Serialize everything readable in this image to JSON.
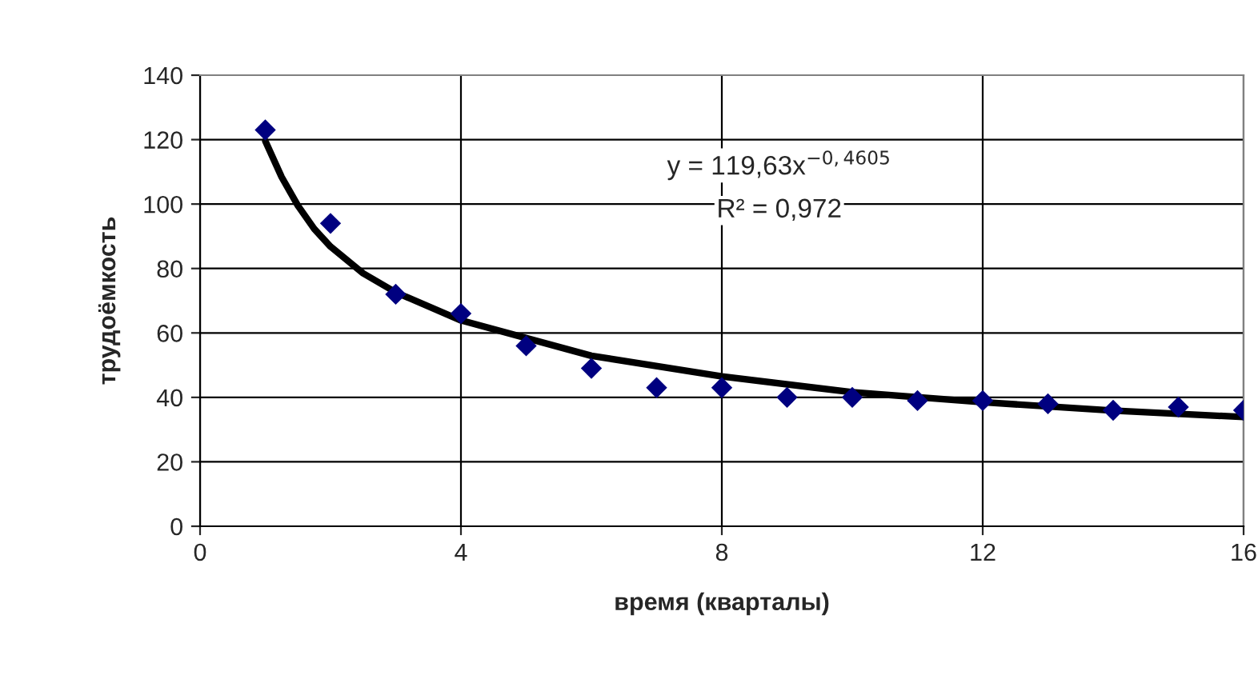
{
  "chart_data": {
    "type": "scatter",
    "xlabel": "время (кварталы)",
    "ylabel": "трудоёмкость",
    "x": [
      1,
      2,
      3,
      4,
      5,
      6,
      7,
      8,
      9,
      10,
      11,
      12,
      13,
      14,
      15,
      16
    ],
    "series": [
      {
        "color": "#000080",
        "marker": "diamond",
        "values": [
          123,
          94,
          72,
          66,
          56,
          49,
          43,
          43,
          40,
          40,
          39,
          39,
          38,
          36,
          37,
          36
        ]
      },
      {
        "type": "line",
        "color": "#000000",
        "marker": "none",
        "line_style": "solid",
        "x": [
          1,
          1.25,
          1.5,
          1.75,
          2,
          2.5,
          3,
          4,
          6,
          8,
          10,
          12,
          14,
          16
        ],
        "values": [
          119.6,
          108.4,
          99.5,
          92.3,
          86.8,
          78.5,
          72.6,
          63.9,
          52.9,
          46.5,
          41.6,
          38.5,
          35.9,
          33.9
        ]
      }
    ],
    "annotations": [
      "y = 119,63x$^{−0,4605}$",
      "R² = 0,972"
    ],
    "xlim": [
      0,
      16
    ],
    "xticks": [
      0,
      4,
      8,
      12,
      16
    ],
    "ylim": [
      0,
      140
    ],
    "yticks": [
      0,
      20,
      40,
      60,
      80,
      100,
      120,
      140
    ],
    "grid": true,
    "legend": false
  }
}
